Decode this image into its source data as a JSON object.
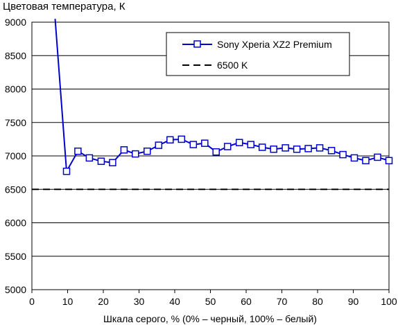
{
  "chart_data": {
    "type": "line",
    "title": "Цветовая температура, К",
    "xlabel": "Шкала серого, % (0% – черный, 100% – белый)",
    "ylabel": "",
    "xlim": [
      0,
      100
    ],
    "ylim": [
      5000,
      9000
    ],
    "xticks": [
      0,
      10,
      20,
      30,
      40,
      50,
      60,
      70,
      80,
      90,
      100
    ],
    "yticks": [
      5000,
      5500,
      6000,
      6500,
      7000,
      7500,
      8000,
      8500,
      9000
    ],
    "grid": "horizontal",
    "legend_position": "top-right",
    "series": [
      {
        "name": "Sony Xperia XZ2 Premium",
        "color": "#0000cc",
        "marker": "square",
        "x": [
          6.5,
          9.7,
          12.9,
          16.1,
          19.4,
          22.6,
          25.8,
          29.0,
          32.3,
          35.5,
          38.7,
          41.9,
          45.2,
          48.4,
          51.6,
          54.8,
          58.1,
          61.3,
          64.5,
          67.7,
          71.0,
          74.2,
          77.4,
          80.6,
          83.9,
          87.1,
          90.3,
          93.5,
          96.8,
          100
        ],
        "show_marker": [
          false,
          true,
          true,
          true,
          true,
          true,
          true,
          true,
          true,
          true,
          true,
          true,
          true,
          true,
          true,
          true,
          true,
          true,
          true,
          true,
          true,
          true,
          true,
          true,
          true,
          true,
          true,
          true,
          true,
          true
        ],
        "values": [
          9050,
          6770,
          7070,
          6970,
          6920,
          6900,
          7090,
          7030,
          7070,
          7160,
          7240,
          7250,
          7170,
          7190,
          7060,
          7140,
          7200,
          7170,
          7130,
          7100,
          7120,
          7100,
          7110,
          7120,
          7080,
          7020,
          6970,
          6930,
          6980,
          6930
        ]
      },
      {
        "name": "6500 K",
        "color": "#000000",
        "dashed": true,
        "x": [
          0,
          100
        ],
        "values": [
          6500,
          6500
        ]
      }
    ]
  }
}
